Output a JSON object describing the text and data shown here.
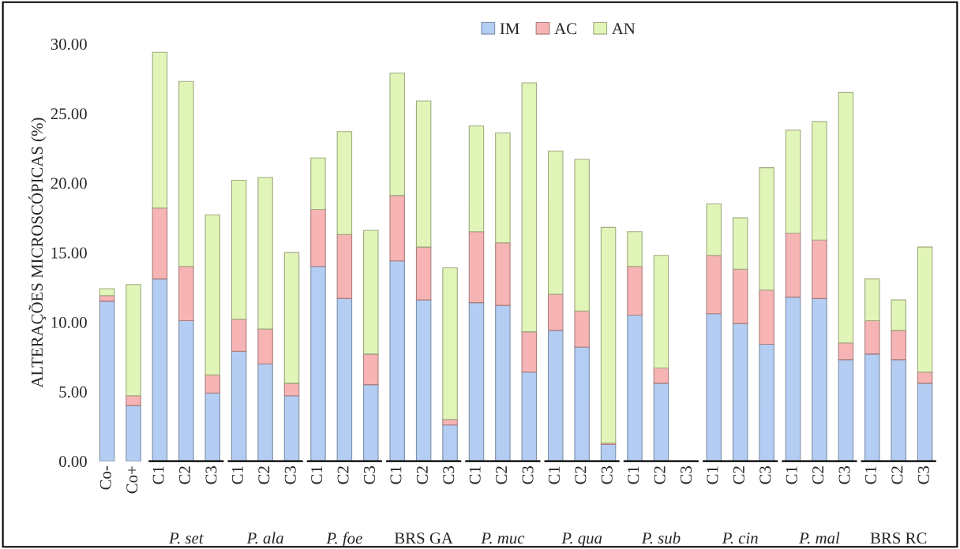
{
  "chart_data": {
    "type": "bar",
    "stacked": true,
    "ylabel": "ALTERAÇÕES MICROSCÓPICAS (%)",
    "categories": [
      "Co-",
      "Co+",
      "C1",
      "C2",
      "C3",
      "C1",
      "C2",
      "C3",
      "C1",
      "C2",
      "C3",
      "C1",
      "C2",
      "C3",
      "C1",
      "C2",
      "C3",
      "C1",
      "C2",
      "C3",
      "C1",
      "C2",
      "C3",
      "C1",
      "C2",
      "C3",
      "C1",
      "C2",
      "C3",
      "C1",
      "C2",
      "C3"
    ],
    "series": [
      {
        "name": "IM",
        "color": "#b4cdf2",
        "values": [
          11.5,
          4.0,
          13.1,
          10.1,
          4.9,
          7.9,
          7.0,
          4.7,
          14.0,
          11.7,
          5.5,
          14.4,
          11.6,
          2.6,
          11.4,
          11.2,
          6.4,
          9.4,
          8.2,
          1.2,
          10.5,
          5.6,
          null,
          10.6,
          9.9,
          8.4,
          11.8,
          11.7,
          7.3,
          7.7,
          7.3,
          5.6
        ]
      },
      {
        "name": "AC",
        "color": "#f7b4b4",
        "values": [
          0.4,
          0.7,
          5.1,
          3.9,
          1.3,
          2.3,
          2.5,
          0.9,
          4.1,
          4.6,
          2.2,
          4.7,
          3.8,
          0.4,
          5.1,
          4.5,
          2.9,
          2.6,
          2.6,
          0.1,
          3.5,
          1.1,
          null,
          4.2,
          3.9,
          3.9,
          4.6,
          4.2,
          1.2,
          2.4,
          2.1,
          0.8
        ]
      },
      {
        "name": "AN",
        "color": "#e2f5b8",
        "values": [
          0.5,
          8.0,
          11.2,
          13.3,
          11.5,
          10.0,
          10.9,
          9.4,
          3.7,
          7.4,
          8.9,
          8.8,
          10.5,
          10.9,
          7.6,
          7.9,
          17.9,
          10.3,
          10.9,
          15.5,
          2.5,
          8.1,
          null,
          3.7,
          3.7,
          8.8,
          7.4,
          8.5,
          18.0,
          3.0,
          2.2,
          9.0
        ]
      }
    ],
    "ylim": [
      0,
      30
    ],
    "yticks": [
      {
        "value": 0,
        "label": "0.00"
      },
      {
        "value": 5,
        "label": "5.00"
      },
      {
        "value": 10,
        "label": "10.00"
      },
      {
        "value": 15,
        "label": "15.00"
      },
      {
        "value": 20,
        "label": "20.00"
      },
      {
        "value": 25,
        "label": "25.00"
      },
      {
        "value": 30,
        "label": "30.00"
      }
    ],
    "annotations": [
      "P. set",
      "P. ala",
      "P. foe",
      "BRS GA",
      "P. muc",
      "P. qua",
      "P. sub",
      "P. cin",
      "P. mal",
      "BRS RC"
    ],
    "legend": "top",
    "grid": false
  }
}
